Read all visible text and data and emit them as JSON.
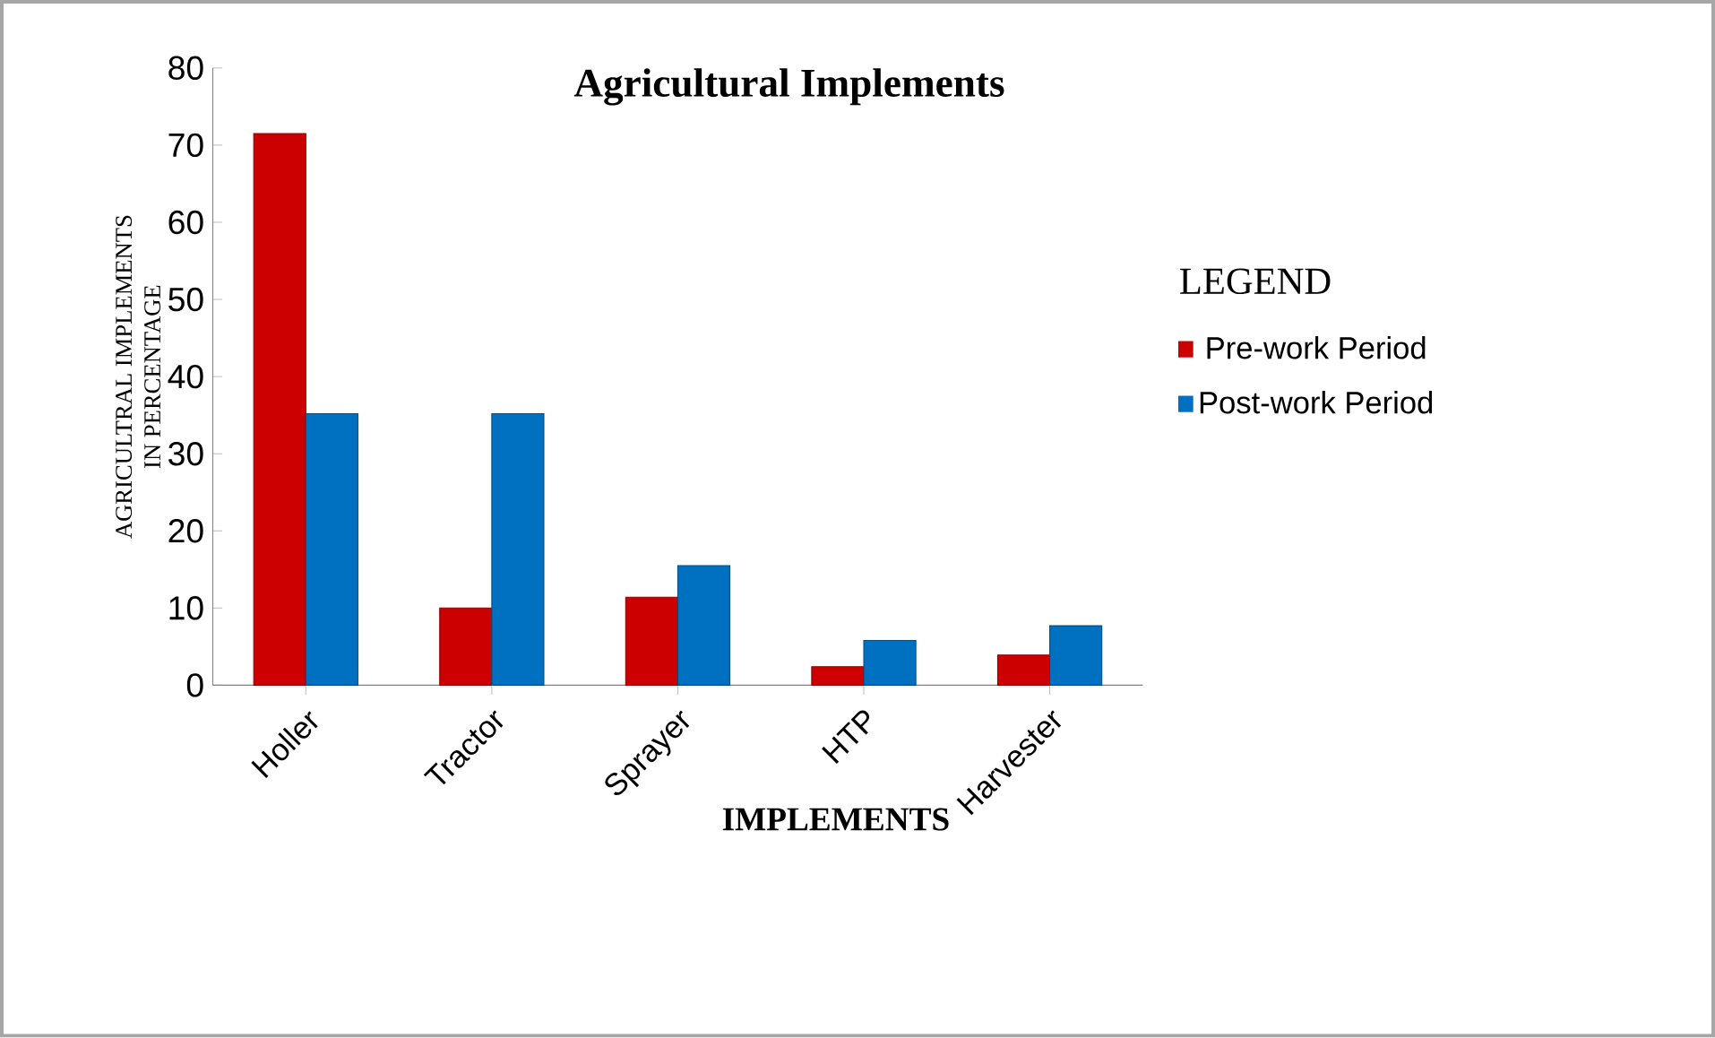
{
  "chart_data": {
    "type": "bar",
    "title": "Agricultural Implements",
    "xlabel": "IMPLEMENTS",
    "ylabel": "AGRICULTRAL IMPLEMENTS\nIN PERCENTAGE",
    "legend_title": "LEGEND",
    "categories": [
      "Holler",
      "Tractor",
      "Sprayer",
      "HTP",
      "Harvester"
    ],
    "series": [
      {
        "name": "Pre-work Period",
        "color": "#cc0000",
        "values": [
          71.5,
          10,
          11.4,
          2.4,
          3.9
        ]
      },
      {
        "name": "Post-work Period",
        "color": "#0070c0",
        "values": [
          35.2,
          35.2,
          15.5,
          5.8,
          7.7
        ]
      }
    ],
    "ylim": [
      0,
      80
    ],
    "yticks": [
      0,
      10,
      20,
      30,
      40,
      50,
      60,
      70,
      80
    ],
    "grid": false,
    "legend": "right"
  }
}
